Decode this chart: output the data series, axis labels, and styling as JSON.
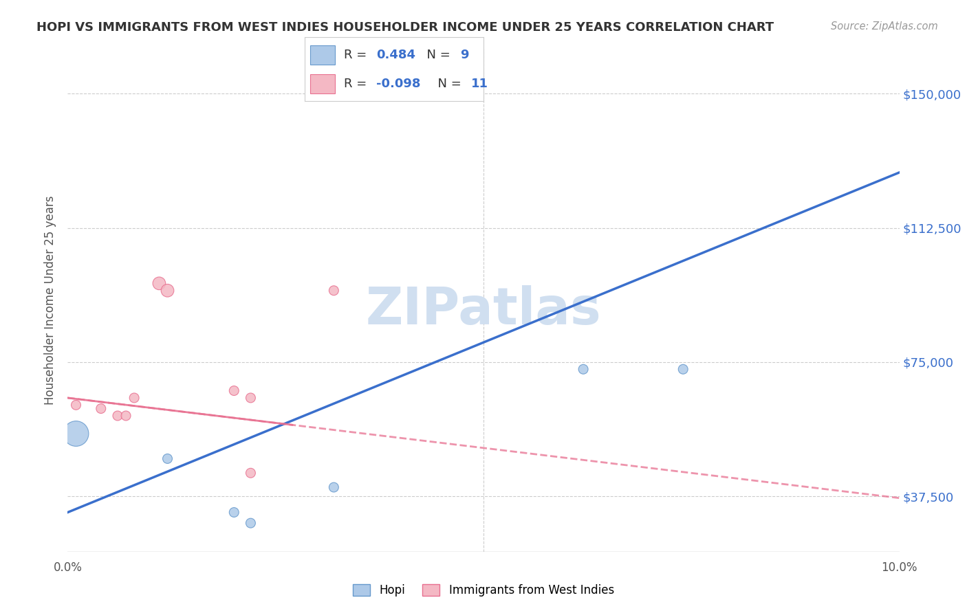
{
  "title": "HOPI VS IMMIGRANTS FROM WEST INDIES HOUSEHOLDER INCOME UNDER 25 YEARS CORRELATION CHART",
  "source": "Source: ZipAtlas.com",
  "ylabel": "Householder Income Under 25 years",
  "xlim": [
    0.0,
    0.1
  ],
  "ylim": [
    22000,
    162500
  ],
  "yticks": [
    37500,
    75000,
    112500,
    150000
  ],
  "yticklabels": [
    "$37,500",
    "$75,000",
    "$112,500",
    "$150,000"
  ],
  "hopi_x": [
    0.001,
    0.012,
    0.02,
    0.022,
    0.032,
    0.062,
    0.074
  ],
  "hopi_y": [
    55000,
    48000,
    33000,
    30000,
    40000,
    73000,
    73000
  ],
  "hopi_sizes": [
    700,
    100,
    100,
    100,
    100,
    100,
    100
  ],
  "hopi_color": "#adc9e8",
  "hopi_edge_color": "#6699cc",
  "hopi_R": 0.484,
  "hopi_N": 9,
  "west_indies_x": [
    0.001,
    0.004,
    0.006,
    0.007,
    0.008,
    0.011,
    0.012,
    0.02,
    0.022,
    0.022,
    0.032
  ],
  "west_indies_y": [
    63000,
    62000,
    60000,
    60000,
    65000,
    97000,
    95000,
    67000,
    44000,
    65000,
    95000
  ],
  "west_indies_sizes": [
    100,
    100,
    100,
    100,
    100,
    180,
    180,
    100,
    100,
    100,
    100
  ],
  "west_indies_color": "#f4b8c4",
  "west_indies_edge_color": "#e87090",
  "west_indies_R": -0.098,
  "west_indies_N": 11,
  "trend_hopi_color": "#3a6fcc",
  "trend_west_color": "#e87090",
  "background_color": "#ffffff",
  "grid_color": "#cccccc",
  "title_color": "#333333",
  "source_color": "#999999",
  "watermark": "ZIPatlas",
  "watermark_color": "#d0dff0"
}
